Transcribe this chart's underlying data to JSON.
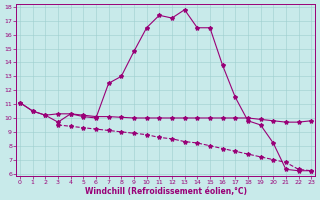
{
  "xlabel": "Windchill (Refroidissement éolien,°C)",
  "background_color": "#c8eaea",
  "line_color": "#990077",
  "xlim": [
    -0.3,
    23.3
  ],
  "ylim": [
    5.8,
    18.2
  ],
  "yticks": [
    6,
    7,
    8,
    9,
    10,
    11,
    12,
    13,
    14,
    15,
    16,
    17,
    18
  ],
  "xticks": [
    0,
    1,
    2,
    3,
    4,
    5,
    6,
    7,
    8,
    9,
    10,
    11,
    12,
    13,
    14,
    15,
    16,
    17,
    18,
    19,
    20,
    21,
    22,
    23
  ],
  "arch_x": [
    0,
    1,
    2,
    3,
    4,
    5,
    6,
    7,
    8,
    9,
    10,
    11,
    12,
    13,
    14,
    15,
    16,
    17,
    18,
    19,
    20,
    21,
    22,
    23
  ],
  "arch_y": [
    11.1,
    10.5,
    10.2,
    9.7,
    10.3,
    10.1,
    10.0,
    12.5,
    13.0,
    14.8,
    16.5,
    17.4,
    17.2,
    17.8,
    16.5,
    16.5,
    13.8,
    11.5,
    9.8,
    9.5,
    8.2,
    6.3,
    6.2,
    6.2
  ],
  "flat_x": [
    0,
    1,
    2,
    3,
    4,
    5,
    6,
    7,
    8,
    9,
    10,
    11,
    12,
    13,
    14,
    15,
    16,
    17,
    18,
    19,
    20,
    21,
    22,
    23
  ],
  "flat_y": [
    11.1,
    10.5,
    10.2,
    10.3,
    10.3,
    10.2,
    10.1,
    10.1,
    10.05,
    10.0,
    10.0,
    10.0,
    10.0,
    10.0,
    10.0,
    10.0,
    10.0,
    10.0,
    10.0,
    9.9,
    9.8,
    9.7,
    9.7,
    9.8
  ],
  "diag_x": [
    3,
    4,
    5,
    6,
    7,
    8,
    9,
    10,
    11,
    12,
    13,
    14,
    15,
    16,
    17,
    18,
    19,
    20,
    21,
    22,
    23
  ],
  "diag_y": [
    9.5,
    9.4,
    9.3,
    9.2,
    9.1,
    9.0,
    8.9,
    8.8,
    8.6,
    8.5,
    8.3,
    8.2,
    8.0,
    7.8,
    7.6,
    7.4,
    7.2,
    7.0,
    6.8,
    6.3,
    6.2
  ],
  "grid_color": "#9ecece",
  "marker": "*",
  "markersize": 3.0,
  "linewidth": 0.8,
  "tick_fontsize": 4.5,
  "xlabel_fontsize": 5.5
}
